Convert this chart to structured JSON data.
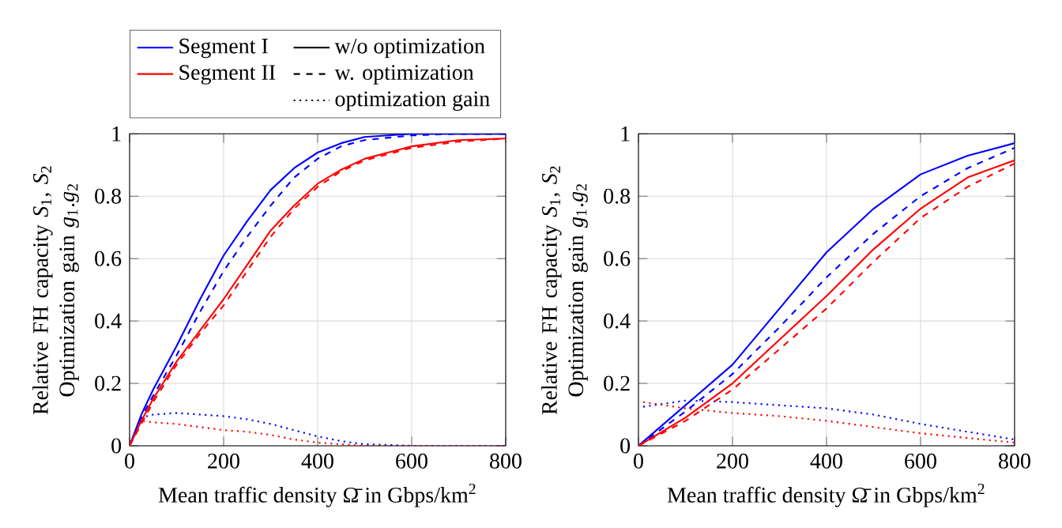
{
  "chart_data": [
    {
      "type": "line",
      "xlabel": "Mean traffic density Ω̄ in Gbps/km$^{2}$",
      "ylabel": "Relative FH capacity *S*$_{1}$, *S*$_{2}$ Optimization gain *g*$_{1}$.*g*$_{2}$",
      "xlim": [
        0,
        800
      ],
      "ylim": [
        0,
        1
      ],
      "xticks": [
        0,
        200,
        400,
        600,
        800
      ],
      "yticks": [
        0,
        0.2,
        0.4,
        0.6,
        0.8,
        1
      ],
      "grid": true,
      "legend": "top",
      "series": [
        {
          "color": "#0000ff",
          "line_style": "solid",
          "x": [
            0,
            25,
            50,
            100,
            150,
            200,
            250,
            300,
            350,
            400,
            450,
            500,
            600,
            700,
            800
          ],
          "values": [
            0,
            0.1,
            0.18,
            0.32,
            0.47,
            0.61,
            0.72,
            0.82,
            0.89,
            0.94,
            0.97,
            0.99,
            1.0,
            1.0,
            1.0
          ]
        },
        {
          "color": "#0000ff",
          "line_style": "dashed",
          "x": [
            0,
            25,
            50,
            100,
            150,
            200,
            250,
            300,
            350,
            400,
            450,
            500,
            600,
            700,
            800
          ],
          "values": [
            0,
            0.09,
            0.16,
            0.29,
            0.43,
            0.56,
            0.67,
            0.77,
            0.86,
            0.92,
            0.96,
            0.98,
            0.995,
            1.0,
            1.0
          ]
        },
        {
          "color": "#0000ff",
          "line_style": "dotted",
          "x": [
            0,
            25,
            50,
            100,
            150,
            200,
            250,
            300,
            350,
            400,
            450,
            500,
            600,
            700,
            800
          ],
          "values": [
            0,
            0.09,
            0.1,
            0.105,
            0.1,
            0.095,
            0.085,
            0.07,
            0.05,
            0.03,
            0.015,
            0.005,
            0,
            0,
            0
          ]
        },
        {
          "color": "#ff0000",
          "line_style": "solid",
          "x": [
            0,
            25,
            50,
            100,
            150,
            200,
            250,
            300,
            350,
            400,
            450,
            500,
            600,
            700,
            800
          ],
          "values": [
            0,
            0.08,
            0.15,
            0.27,
            0.37,
            0.47,
            0.58,
            0.69,
            0.77,
            0.84,
            0.885,
            0.92,
            0.96,
            0.98,
            0.985
          ]
        },
        {
          "color": "#ff0000",
          "line_style": "dashed",
          "x": [
            0,
            25,
            50,
            100,
            150,
            200,
            250,
            300,
            350,
            400,
            450,
            500,
            600,
            700,
            800
          ],
          "values": [
            0,
            0.07,
            0.14,
            0.26,
            0.36,
            0.45,
            0.56,
            0.67,
            0.76,
            0.83,
            0.88,
            0.915,
            0.955,
            0.975,
            0.985
          ]
        },
        {
          "color": "#ff0000",
          "line_style": "dotted",
          "x": [
            0,
            25,
            50,
            100,
            150,
            200,
            250,
            300,
            350,
            400,
            450,
            500,
            600,
            700,
            800
          ],
          "values": [
            0,
            0.08,
            0.075,
            0.07,
            0.06,
            0.05,
            0.045,
            0.035,
            0.02,
            0.01,
            0.005,
            0,
            0,
            0,
            0
          ]
        },
        {
          "name": "Segment I",
          "color": "#0000ff"
        },
        {
          "name": "Segment II",
          "color": "#ff0000"
        },
        {
          "name": "w/o optimization",
          "color": "#000000",
          "line_style": "solid"
        },
        {
          "name": "w. optimization",
          "color": "#000000",
          "line_style": "dashed"
        },
        {
          "name": "optimization gain",
          "color": "#000000",
          "line_style": "dotted"
        }
      ]
    },
    {
      "type": "line",
      "xlabel": "Mean traffic density Ω̄ in Gbps/km$^{2}$",
      "ylabel": "Relative FH capacity *S*$_{1}$, *S*$_{2}$ Optimization gain *g*$_{1}$.*g*$_{2}$",
      "xlim": [
        0,
        800
      ],
      "ylim": [
        0,
        1
      ],
      "xticks": [
        0,
        200,
        400,
        600,
        800
      ],
      "yticks": [
        0,
        0.2,
        0.4,
        0.6,
        0.8,
        1
      ],
      "grid": true,
      "series": [
        {
          "color": "#0000ff",
          "line_style": "solid",
          "x": [
            0,
            100,
            200,
            300,
            400,
            500,
            600,
            700,
            800
          ],
          "values": [
            0,
            0.13,
            0.26,
            0.44,
            0.62,
            0.76,
            0.87,
            0.93,
            0.97
          ]
        },
        {
          "color": "#0000ff",
          "line_style": "dashed",
          "x": [
            0,
            100,
            200,
            300,
            400,
            500,
            600,
            700,
            800
          ],
          "values": [
            0,
            0.11,
            0.23,
            0.38,
            0.54,
            0.68,
            0.8,
            0.89,
            0.955
          ]
        },
        {
          "color": "#0000ff",
          "line_style": "dotted",
          "x": [
            10,
            100,
            200,
            300,
            400,
            500,
            600,
            700,
            800
          ],
          "values": [
            0.125,
            0.145,
            0.14,
            0.13,
            0.12,
            0.1,
            0.07,
            0.045,
            0.02
          ]
        },
        {
          "color": "#ff0000",
          "line_style": "solid",
          "x": [
            0,
            100,
            200,
            300,
            400,
            500,
            600,
            700,
            800
          ],
          "values": [
            0,
            0.09,
            0.2,
            0.34,
            0.48,
            0.63,
            0.76,
            0.86,
            0.915
          ]
        },
        {
          "color": "#ff0000",
          "line_style": "dashed",
          "x": [
            0,
            100,
            200,
            300,
            400,
            500,
            600,
            700,
            800
          ],
          "values": [
            0,
            0.08,
            0.18,
            0.31,
            0.44,
            0.59,
            0.73,
            0.83,
            0.905
          ]
        },
        {
          "color": "#ff0000",
          "line_style": "dotted",
          "x": [
            10,
            100,
            200,
            300,
            400,
            500,
            600,
            700,
            800
          ],
          "values": [
            0.14,
            0.12,
            0.105,
            0.095,
            0.08,
            0.06,
            0.04,
            0.025,
            0.01
          ]
        }
      ]
    }
  ]
}
